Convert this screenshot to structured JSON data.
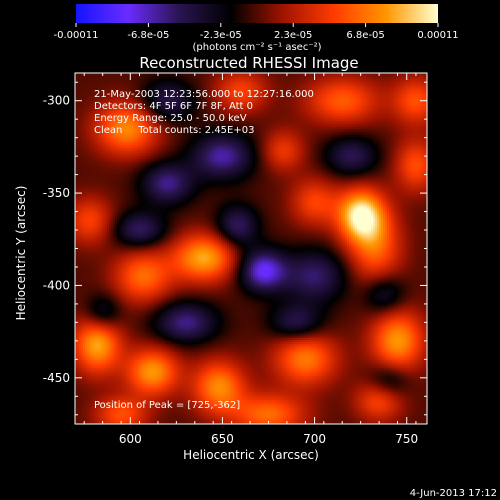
{
  "chart_data": {
    "type": "heatmap",
    "title": "Reconstructed RHESSI Image",
    "xlabel": "Heliocentric X (arcsec)",
    "ylabel": "Heliocentric Y (arcsec)",
    "xlim": [
      570,
      761
    ],
    "ylim": [
      -475,
      -285
    ],
    "x_ticks": [
      600,
      650,
      700,
      750
    ],
    "y_ticks": [
      -300,
      -350,
      -400,
      -450
    ],
    "colorbar": {
      "label": "(photons cm⁻² s⁻¹ asec⁻²)",
      "ticks": [
        "-0.00011",
        "-6.8e-05",
        "-2.3e-05",
        "2.3e-05",
        "6.8e-05",
        "0.00011"
      ],
      "range": [
        -0.00011,
        0.00011
      ],
      "colors": [
        "#1414ff",
        "#6a2cff",
        "#2a1450",
        "#000000",
        "#a01400",
        "#ff3c00",
        "#ff9600",
        "#ffffd0"
      ]
    },
    "annotations": [
      "21-May-2003 12:23:56.000 to 12:27:16.000",
      "Detectors: 4F 5F 6F 7F 8F, Att 0",
      "Energy Range: 25.0 - 50.0 keV",
      "Clean     Total counts: 2.45E+03"
    ],
    "peak_label": "Position of Peak = [725,-362]",
    "peak": {
      "x": 725,
      "y": -362
    },
    "sources": [
      {
        "x": 725,
        "y": -362,
        "value": 1.0,
        "sx": 9,
        "sy": 10
      },
      {
        "x": 733,
        "y": -380,
        "value": 0.55,
        "sx": 10,
        "sy": 14
      },
      {
        "x": 598,
        "y": -315,
        "value": 0.7,
        "sx": 12,
        "sy": 10
      },
      {
        "x": 640,
        "y": -385,
        "value": 0.8,
        "sx": 12,
        "sy": 9
      },
      {
        "x": 607,
        "y": -395,
        "value": 0.6,
        "sx": 11,
        "sy": 10
      },
      {
        "x": 582,
        "y": -432,
        "value": 0.8,
        "sx": 9,
        "sy": 11
      },
      {
        "x": 612,
        "y": -447,
        "value": 0.75,
        "sx": 10,
        "sy": 9
      },
      {
        "x": 648,
        "y": -455,
        "value": 0.7,
        "sx": 10,
        "sy": 10
      },
      {
        "x": 695,
        "y": -440,
        "value": 0.65,
        "sx": 12,
        "sy": 10
      },
      {
        "x": 745,
        "y": -430,
        "value": 0.75,
        "sx": 10,
        "sy": 12
      },
      {
        "x": 715,
        "y": -300,
        "value": 0.55,
        "sx": 14,
        "sy": 9
      },
      {
        "x": 755,
        "y": -300,
        "value": 0.5,
        "sx": 9,
        "sy": 9
      },
      {
        "x": 755,
        "y": -335,
        "value": 0.5,
        "sx": 8,
        "sy": 10
      },
      {
        "x": 700,
        "y": -355,
        "value": 0.45,
        "sx": 9,
        "sy": 9
      },
      {
        "x": 683,
        "y": -327,
        "value": 0.4,
        "sx": 8,
        "sy": 8
      },
      {
        "x": 660,
        "y": -295,
        "value": 0.45,
        "sx": 10,
        "sy": 8
      },
      {
        "x": 578,
        "y": -365,
        "value": 0.45,
        "sx": 9,
        "sy": 9
      },
      {
        "x": 675,
        "y": -470,
        "value": 0.6,
        "sx": 14,
        "sy": 8
      },
      {
        "x": 735,
        "y": -462,
        "value": 0.5,
        "sx": 9,
        "sy": 8
      },
      {
        "x": 595,
        "y": -470,
        "value": 0.5,
        "sx": 10,
        "sy": 7
      },
      {
        "x": 672,
        "y": -392,
        "value": -0.75,
        "sx": 9,
        "sy": 8
      },
      {
        "x": 650,
        "y": -330,
        "value": -0.6,
        "sx": 12,
        "sy": 9
      },
      {
        "x": 620,
        "y": -345,
        "value": -0.55,
        "sx": 10,
        "sy": 8
      },
      {
        "x": 700,
        "y": -395,
        "value": -0.5,
        "sx": 12,
        "sy": 10
      },
      {
        "x": 658,
        "y": -368,
        "value": -0.5,
        "sx": 8,
        "sy": 8
      },
      {
        "x": 605,
        "y": -370,
        "value": -0.5,
        "sx": 10,
        "sy": 7
      },
      {
        "x": 720,
        "y": -330,
        "value": -0.45,
        "sx": 10,
        "sy": 8
      },
      {
        "x": 738,
        "y": -405,
        "value": -0.4,
        "sx": 8,
        "sy": 8
      },
      {
        "x": 630,
        "y": -420,
        "value": -0.55,
        "sx": 12,
        "sy": 8
      },
      {
        "x": 690,
        "y": -420,
        "value": -0.45,
        "sx": 10,
        "sy": 7
      },
      {
        "x": 620,
        "y": -300,
        "value": -0.45,
        "sx": 10,
        "sy": 8
      },
      {
        "x": 740,
        "y": -452,
        "value": -0.4,
        "sx": 8,
        "sy": 7
      },
      {
        "x": 585,
        "y": -415,
        "value": -0.4,
        "sx": 7,
        "sy": 7
      }
    ]
  },
  "timestamp": "4-Jun-2013 17:12"
}
